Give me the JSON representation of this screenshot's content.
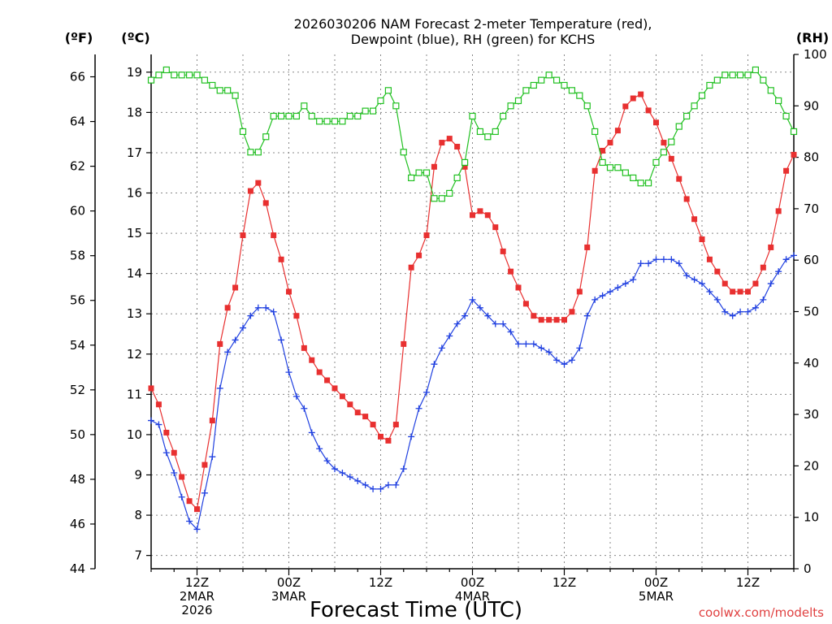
{
  "chart_data": {
    "type": "line",
    "title": [
      "2026030206 NAM Forecast 2-meter Temperature (red),",
      "Dewpoint (blue), RH (green) for KCHS"
    ],
    "xlabel": "Forecast Time (UTC)",
    "credit": "coolwx.com/modelts",
    "units": {
      "fahrenheit": "(ºF)",
      "celsius": "(ºC)",
      "rh": "(RH)"
    },
    "x_hours_from_2026030200": {
      "range": [
        6,
        90
      ]
    },
    "x_ticks": [
      {
        "hour": 12,
        "label": [
          "12Z",
          "2MAR",
          "2026"
        ]
      },
      {
        "hour": 24,
        "label": [
          "00Z",
          "3MAR"
        ]
      },
      {
        "hour": 36,
        "label": [
          "12Z"
        ]
      },
      {
        "hour": 48,
        "label": [
          "00Z",
          "4MAR"
        ]
      },
      {
        "hour": 60,
        "label": [
          "12Z"
        ]
      },
      {
        "hour": 72,
        "label": [
          "00Z",
          "5MAR"
        ]
      },
      {
        "hour": 84,
        "label": [
          "12Z"
        ]
      }
    ],
    "y_fahrenheit": {
      "range": [
        44,
        67
      ],
      "ticks": [
        "44",
        "46",
        "48",
        "50",
        "52",
        "54",
        "56",
        "58",
        "60",
        "62",
        "64",
        "66"
      ]
    },
    "y_celsius": {
      "range": [
        6.67,
        19.44
      ],
      "ticks": [
        "7",
        "8",
        "9",
        "10",
        "11",
        "12",
        "13",
        "14",
        "15",
        "16",
        "17",
        "18",
        "19"
      ]
    },
    "y_rh": {
      "range": [
        0,
        100
      ],
      "ticks": [
        "0",
        "10",
        "20",
        "30",
        "40",
        "50",
        "60",
        "70",
        "80",
        "90",
        "100"
      ]
    },
    "grid": true,
    "series": [
      {
        "name": "2-meter Temperature (red)",
        "unit": "°C",
        "color": "#e83030",
        "marker": "square-filled",
        "x": [
          6,
          7,
          8,
          9,
          10,
          11,
          12,
          13,
          14,
          15,
          16,
          17,
          18,
          19,
          20,
          21,
          22,
          23,
          24,
          25,
          26,
          27,
          28,
          29,
          30,
          31,
          32,
          33,
          34,
          35,
          36,
          37,
          38,
          39,
          40,
          41,
          42,
          43,
          44,
          45,
          46,
          47,
          48,
          49,
          50,
          51,
          52,
          53,
          54,
          55,
          56,
          57,
          58,
          59,
          60,
          61,
          62,
          63,
          64,
          65,
          66,
          67,
          68,
          69,
          70,
          71,
          72,
          73,
          74,
          75,
          76,
          77,
          78,
          79,
          80,
          81,
          82,
          83,
          84,
          85,
          86,
          87,
          88,
          89,
          90
        ],
        "values": [
          11.15,
          10.75,
          10.05,
          9.55,
          8.95,
          8.35,
          8.15,
          9.25,
          10.35,
          12.25,
          13.15,
          13.65,
          14.95,
          16.05,
          16.25,
          15.75,
          14.95,
          14.35,
          13.55,
          12.95,
          12.15,
          11.85,
          11.55,
          11.35,
          11.15,
          10.95,
          10.75,
          10.55,
          10.45,
          10.25,
          9.95,
          9.85,
          10.25,
          12.25,
          14.15,
          14.45,
          14.95,
          16.65,
          17.25,
          17.35,
          17.15,
          16.65,
          15.45,
          15.55,
          15.45,
          15.15,
          14.55,
          14.05,
          13.65,
          13.25,
          12.95,
          12.85,
          12.85,
          12.85,
          12.85,
          13.05,
          13.55,
          14.65,
          16.55,
          17.05,
          17.25,
          17.55,
          18.15,
          18.35,
          18.45,
          18.05,
          17.75,
          17.25,
          16.85,
          16.35,
          15.85,
          15.35,
          14.85,
          14.35,
          14.05,
          13.75,
          13.55,
          13.55,
          13.55,
          13.75,
          14.15,
          14.65,
          15.55,
          16.55,
          16.95
        ]
      },
      {
        "name": "Dewpoint (blue)",
        "unit": "°C",
        "color": "#2040e0",
        "marker": "plus",
        "x": [
          6,
          7,
          8,
          9,
          10,
          11,
          12,
          13,
          14,
          15,
          16,
          17,
          18,
          19,
          20,
          21,
          22,
          23,
          24,
          25,
          26,
          27,
          28,
          29,
          30,
          31,
          32,
          33,
          34,
          35,
          36,
          37,
          38,
          39,
          40,
          41,
          42,
          43,
          44,
          45,
          46,
          47,
          48,
          49,
          50,
          51,
          52,
          53,
          54,
          55,
          56,
          57,
          58,
          59,
          60,
          61,
          62,
          63,
          64,
          65,
          66,
          67,
          68,
          69,
          70,
          71,
          72,
          73,
          74,
          75,
          76,
          77,
          78,
          79,
          80,
          81,
          82,
          83,
          84,
          85,
          86,
          87,
          88,
          89,
          90
        ],
        "values": [
          10.35,
          10.25,
          9.55,
          9.05,
          8.45,
          7.85,
          7.65,
          8.55,
          9.45,
          11.15,
          12.05,
          12.35,
          12.65,
          12.95,
          13.15,
          13.15,
          13.05,
          12.35,
          11.55,
          10.95,
          10.65,
          10.05,
          9.65,
          9.35,
          9.15,
          9.05,
          8.95,
          8.85,
          8.75,
          8.65,
          8.65,
          8.75,
          8.75,
          9.15,
          9.95,
          10.65,
          11.05,
          11.75,
          12.15,
          12.45,
          12.75,
          12.95,
          13.35,
          13.15,
          12.95,
          12.75,
          12.75,
          12.55,
          12.25,
          12.25,
          12.25,
          12.15,
          12.05,
          11.85,
          11.75,
          11.85,
          12.15,
          12.95,
          13.35,
          13.45,
          13.55,
          13.65,
          13.75,
          13.85,
          14.25,
          14.25,
          14.35,
          14.35,
          14.35,
          14.25,
          13.95,
          13.85,
          13.75,
          13.55,
          13.35,
          13.05,
          12.95,
          13.05,
          13.05,
          13.15,
          13.35,
          13.75,
          14.05,
          14.35,
          14.45
        ]
      },
      {
        "name": "RH (green)",
        "unit": "%",
        "color": "#20c020",
        "marker": "square-open",
        "x": [
          6,
          7,
          8,
          9,
          10,
          11,
          12,
          13,
          14,
          15,
          16,
          17,
          18,
          19,
          20,
          21,
          22,
          23,
          24,
          25,
          26,
          27,
          28,
          29,
          30,
          31,
          32,
          33,
          34,
          35,
          36,
          37,
          38,
          39,
          40,
          41,
          42,
          43,
          44,
          45,
          46,
          47,
          48,
          49,
          50,
          51,
          52,
          53,
          54,
          55,
          56,
          57,
          58,
          59,
          60,
          61,
          62,
          63,
          64,
          65,
          66,
          67,
          68,
          69,
          70,
          71,
          72,
          73,
          74,
          75,
          76,
          77,
          78,
          79,
          80,
          81,
          82,
          83,
          84,
          85,
          86,
          87,
          88,
          89,
          90
        ],
        "values": [
          95,
          96,
          97,
          96,
          96,
          96,
          96,
          95,
          94,
          93,
          93,
          92,
          85,
          81,
          81,
          84,
          88,
          88,
          88,
          88,
          90,
          88,
          87,
          87,
          87,
          87,
          88,
          88,
          89,
          89,
          91,
          93,
          90,
          81,
          76,
          77,
          77,
          72,
          72,
          73,
          76,
          79,
          88,
          85,
          84,
          85,
          88,
          90,
          91,
          93,
          94,
          95,
          96,
          95,
          94,
          93,
          92,
          90,
          85,
          79,
          78,
          78,
          77,
          76,
          75,
          75,
          79,
          81,
          83,
          86,
          88,
          90,
          92,
          94,
          95,
          96,
          96,
          96,
          96,
          97,
          95,
          93,
          91,
          88,
          85
        ]
      }
    ]
  }
}
